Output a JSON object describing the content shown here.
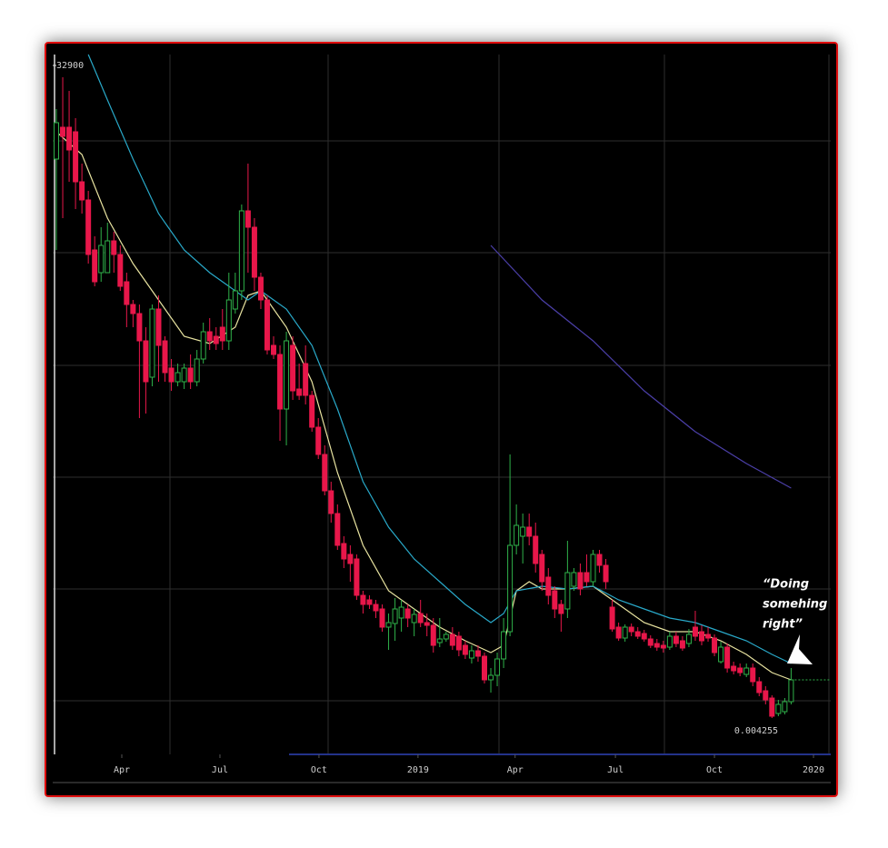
{
  "chart_data": {
    "type": "candlestick",
    "up_color": "#2fb24a",
    "down_color": "#e8174a",
    "ylim": [
      2580,
      33380
    ],
    "yticks": [
      32900
    ],
    "xlim": [
      -0.57,
      121.2
    ],
    "xticks": [
      {
        "value": 10.24,
        "label": "Apr"
      },
      {
        "value": 25.6,
        "label": "Jul"
      },
      {
        "value": 41.1,
        "label": "Oct"
      },
      {
        "value": 56.6,
        "label": "2019"
      },
      {
        "value": 71.8,
        "label": "Apr"
      },
      {
        "value": 87.5,
        "label": "Jul"
      },
      {
        "value": 103.0,
        "label": "Oct"
      },
      {
        "value": 118.5,
        "label": "2020"
      }
    ],
    "open": [
      28780,
      30180,
      30180,
      29980,
      27780,
      26980,
      24780,
      23780,
      23780,
      25180,
      24580,
      23380,
      22380,
      21980,
      20780,
      19180,
      22180,
      20780,
      19580,
      18980,
      18980,
      19580,
      18980,
      19980,
      21180,
      20980,
      21380,
      20780,
      22180,
      22980,
      26500,
      25780,
      23580,
      22580,
      20580,
      20180,
      17780,
      20580,
      18660,
      19780,
      18380,
      16980,
      15780,
      14180,
      13180,
      11860,
      11380,
      11180,
      9580,
      9380,
      9180,
      8980,
      8180,
      8340,
      8580,
      8980,
      8380,
      8780,
      8380,
      8260,
      7500,
      7660,
      7860,
      7780,
      7380,
      6820,
      7140,
      6900,
      5860,
      6060,
      6780,
      7980,
      11780,
      12180,
      12580,
      12180,
      11380,
      10380,
      9780,
      9180,
      8980,
      9980,
      10580,
      10580,
      10180,
      11380,
      10900,
      9060,
      8180,
      7700,
      8180,
      7980,
      7900,
      7660,
      7460,
      7380,
      7300,
      7780,
      7580,
      7460,
      8180,
      7980,
      7860,
      7700,
      6660,
      7300,
      6460,
      6380,
      6100,
      6380,
      5780,
      5380,
      5060,
      4380,
      4460,
      4900
    ],
    "high": [
      30980,
      32380,
      31780,
      30580,
      28580,
      27380,
      25380,
      25780,
      25980,
      25580,
      24980,
      23780,
      22580,
      22380,
      21380,
      22380,
      22780,
      20980,
      19980,
      19780,
      19780,
      20180,
      20380,
      21580,
      21780,
      21380,
      22180,
      23780,
      23780,
      26780,
      28580,
      26180,
      23780,
      22780,
      20980,
      20580,
      21180,
      20980,
      19780,
      20580,
      18580,
      17380,
      16180,
      14580,
      13580,
      12180,
      11780,
      11380,
      9780,
      9580,
      9380,
      9180,
      8780,
      9460,
      9380,
      9180,
      8980,
      9380,
      8780,
      8580,
      8580,
      7980,
      8180,
      7980,
      7580,
      7380,
      7380,
      7060,
      6380,
      7060,
      8580,
      15780,
      13580,
      13180,
      13180,
      12780,
      11580,
      10780,
      9980,
      9380,
      11980,
      10780,
      10980,
      11380,
      11580,
      11580,
      11180,
      9380,
      8380,
      8300,
      8340,
      8180,
      8060,
      7820,
      7660,
      7580,
      7980,
      7980,
      7780,
      8100,
      8900,
      8260,
      8180,
      7860,
      7540,
      7460,
      6660,
      6580,
      6580,
      6580,
      5980,
      5580,
      5180,
      4980,
      5060,
      6380
    ],
    "low": [
      24780,
      26180,
      27780,
      26580,
      26380,
      24180,
      23180,
      23380,
      23780,
      23780,
      22980,
      21380,
      21380,
      17380,
      17580,
      18780,
      18980,
      18980,
      18580,
      18780,
      18660,
      18660,
      18780,
      19780,
      20380,
      20380,
      20380,
      20380,
      21980,
      22580,
      23780,
      22980,
      22180,
      20180,
      19980,
      16380,
      16180,
      18180,
      18180,
      17980,
      16780,
      15580,
      13980,
      12780,
      11580,
      10780,
      10180,
      9380,
      8780,
      8980,
      8580,
      7980,
      7180,
      7580,
      7980,
      8180,
      7780,
      8180,
      7780,
      7060,
      7300,
      7540,
      7180,
      6900,
      6780,
      6580,
      6660,
      5700,
      5300,
      5580,
      6380,
      7780,
      11380,
      10980,
      11780,
      10580,
      9780,
      9180,
      8580,
      7980,
      8580,
      9780,
      9580,
      9980,
      9980,
      10580,
      9860,
      7980,
      7580,
      7540,
      7780,
      7660,
      7540,
      7260,
      7140,
      7060,
      7180,
      7300,
      7140,
      7300,
      7580,
      7380,
      7540,
      6900,
      6580,
      6180,
      6100,
      6020,
      5980,
      5580,
      5140,
      4780,
      4180,
      4260,
      4340,
      4780
    ],
    "close": [
      30380,
      29780,
      29180,
      27780,
      26980,
      24580,
      23380,
      24980,
      25180,
      24580,
      23180,
      22380,
      21980,
      20780,
      18980,
      22180,
      20580,
      19380,
      18980,
      19380,
      19580,
      18980,
      19980,
      21180,
      20780,
      20660,
      20780,
      22580,
      22980,
      26500,
      25780,
      23580,
      22580,
      20380,
      20180,
      17780,
      20780,
      18580,
      18380,
      18380,
      16980,
      15780,
      14180,
      13180,
      11780,
      11180,
      10980,
      9580,
      9180,
      9180,
      8900,
      8180,
      8380,
      8980,
      9060,
      8580,
      8740,
      8380,
      8260,
      7380,
      7660,
      7860,
      7380,
      7180,
      6980,
      7140,
      6900,
      5860,
      6060,
      6780,
      7980,
      11780,
      12660,
      12580,
      12180,
      10980,
      10180,
      9580,
      8980,
      8780,
      10580,
      10580,
      9860,
      10180,
      11380,
      10900,
      10180,
      8100,
      7700,
      8180,
      7980,
      7780,
      7660,
      7380,
      7300,
      7260,
      7780,
      7460,
      7260,
      7860,
      7780,
      7580,
      7700,
      7060,
      7300,
      6380,
      6260,
      6180,
      6380,
      5780,
      5300,
      4980,
      4260,
      4780,
      4900,
      5860
    ],
    "overlays": [
      {
        "type": "line",
        "color": "#e8e3a0",
        "x": [
          0,
          4,
          8,
          12,
          16,
          20,
          24,
          28,
          30,
          32,
          36,
          40,
          44,
          48,
          52,
          56,
          60,
          64,
          68,
          70,
          72,
          74,
          76,
          80,
          84,
          88,
          92,
          96,
          100,
          104,
          108,
          112,
          115
        ],
        "values": [
          29980,
          28980,
          26180,
          24180,
          22580,
          20980,
          20660,
          21380,
          22780,
          22980,
          21380,
          18980,
          14980,
          11780,
          9780,
          8980,
          8180,
          7580,
          7060,
          7380,
          9780,
          10180,
          9860,
          9860,
          9980,
          9180,
          8380,
          7980,
          7980,
          7580,
          6980,
          6180,
          5860
        ]
      },
      {
        "type": "line",
        "color": "#29a9c9",
        "x": [
          5,
          8,
          12,
          16,
          20,
          24,
          28,
          30,
          32,
          36,
          40,
          44,
          48,
          52,
          56,
          60,
          64,
          68,
          70,
          72,
          76,
          80,
          84,
          88,
          92,
          96,
          100,
          104,
          108,
          112,
          115
        ],
        "values": [
          33380,
          31380,
          28780,
          26380,
          24780,
          23780,
          22980,
          22580,
          22980,
          22180,
          20580,
          17780,
          14580,
          12580,
          11180,
          10180,
          9180,
          8380,
          8780,
          9780,
          9980,
          9860,
          9980,
          9380,
          8980,
          8580,
          8380,
          7980,
          7580,
          6980,
          6580
        ]
      },
      {
        "type": "line",
        "color": "#4b3fa8",
        "x": [
          68,
          70,
          76,
          84,
          92,
          100,
          108,
          115
        ],
        "values": [
          24980,
          24380,
          22580,
          20780,
          18580,
          16780,
          15380,
          14300
        ]
      }
    ],
    "last_price_label": "0.004255",
    "annotation": [
      "“Doing",
      "somehing",
      "right”"
    ]
  }
}
